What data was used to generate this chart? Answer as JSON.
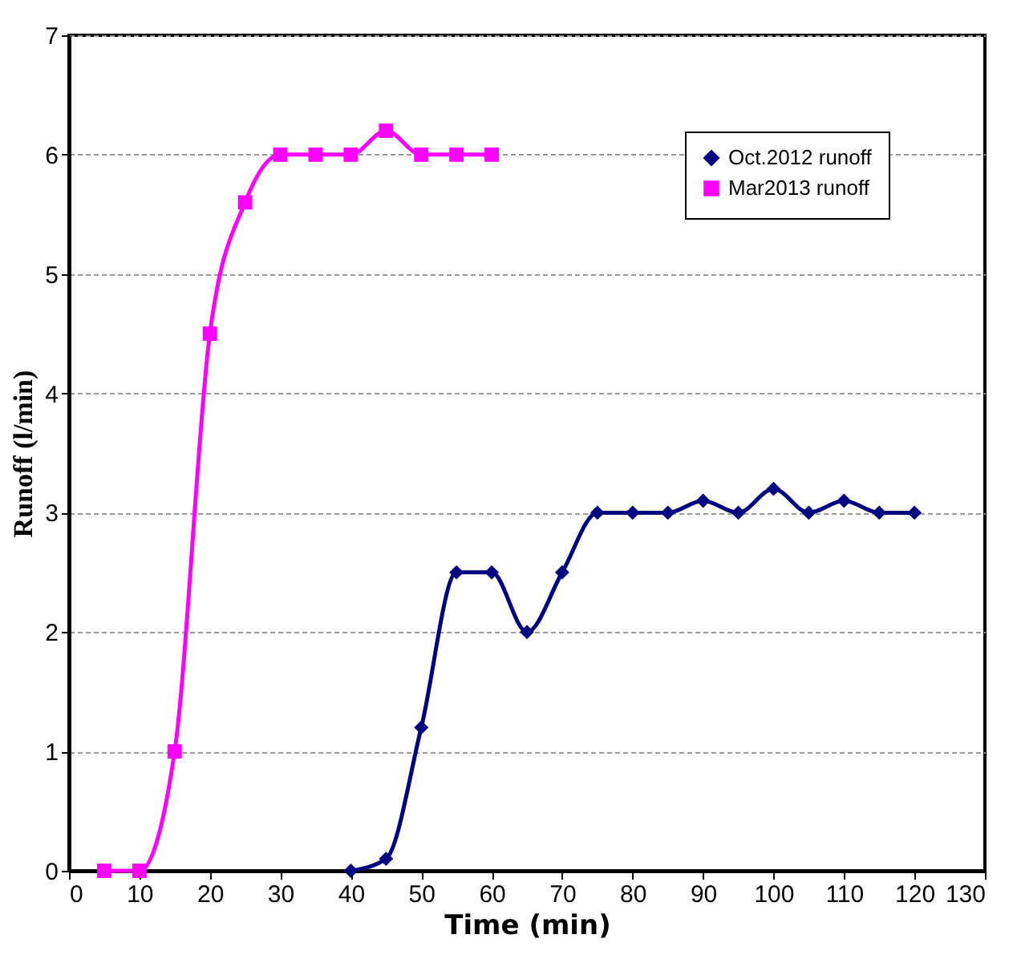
{
  "chart_data": {
    "type": "line",
    "xlabel": "Time (min)",
    "ylabel": "Runoff (l/min)",
    "xlim": [
      0,
      130
    ],
    "xticks": [
      0,
      10,
      20,
      30,
      40,
      50,
      60,
      70,
      80,
      90,
      100,
      110,
      120,
      130
    ],
    "ylim": [
      0,
      7
    ],
    "yticks": [
      0,
      1,
      2,
      3,
      4,
      5,
      6,
      7
    ],
    "grid": "y",
    "legend": "top right",
    "series": [
      {
        "name": "Oct.2012 runoff",
        "color": "#000080",
        "marker": "diamond",
        "x": [
          40,
          45,
          50,
          55,
          60,
          65,
          70,
          75,
          80,
          85,
          90,
          95,
          100,
          105,
          110,
          115,
          120
        ],
        "values": [
          0,
          0.1,
          1.2,
          2.5,
          2.5,
          2.0,
          2.5,
          3.0,
          3.0,
          3.0,
          3.1,
          3.0,
          3.2,
          3.0,
          3.1,
          3.0,
          3.0
        ]
      },
      {
        "name": "Mar2013 runoff",
        "color": "#ff00ff",
        "marker": "square",
        "x": [
          5,
          10,
          15,
          20,
          25,
          30,
          35,
          40,
          45,
          50,
          55,
          60
        ],
        "values": [
          0,
          0,
          1.0,
          4.5,
          5.6,
          6.0,
          6.0,
          6.0,
          6.2,
          6.0,
          6.0,
          6.0
        ]
      }
    ]
  }
}
